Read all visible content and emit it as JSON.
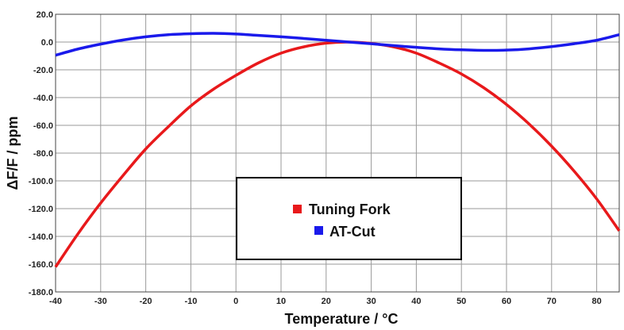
{
  "chart_data": {
    "type": "line",
    "title": "",
    "xlabel": "Temperature / °C",
    "ylabel": "ΔF/F / ppm",
    "xlim": [
      -40,
      85
    ],
    "ylim": [
      -180,
      20
    ],
    "grid": true,
    "legend_position": "center-bottom",
    "x_ticks": [
      {
        "value": -40,
        "label": "-40"
      },
      {
        "value": -30,
        "label": "-30"
      },
      {
        "value": -20,
        "label": "-20"
      },
      {
        "value": -10,
        "label": "-10"
      },
      {
        "value": 0,
        "label": "0"
      },
      {
        "value": 10,
        "label": "10"
      },
      {
        "value": 20,
        "label": "20"
      },
      {
        "value": 30,
        "label": "30"
      },
      {
        "value": 40,
        "label": "40"
      },
      {
        "value": 50,
        "label": "50"
      },
      {
        "value": 60,
        "label": "60"
      },
      {
        "value": 70,
        "label": "70"
      },
      {
        "value": 80,
        "label": "80"
      }
    ],
    "y_ticks": [
      {
        "value": 20,
        "label": "20.0"
      },
      {
        "value": 0,
        "label": "0.0"
      },
      {
        "value": -20,
        "label": "-20.0"
      },
      {
        "value": -40,
        "label": "-40.0"
      },
      {
        "value": -60,
        "label": "-60.0"
      },
      {
        "value": -80,
        "label": "-80.0"
      },
      {
        "value": -100,
        "label": "-100.0"
      },
      {
        "value": -120,
        "label": "-120.0"
      },
      {
        "value": -140,
        "label": "-140.0"
      },
      {
        "value": -160,
        "label": "-160.0"
      },
      {
        "value": -180,
        "label": "-180.0"
      }
    ],
    "series": [
      {
        "name": "Tuning Fork",
        "color": "#e8191b",
        "x": [
          -40,
          -35,
          -30,
          -25,
          -20,
          -15,
          -10,
          -5,
          0,
          5,
          10,
          15,
          20,
          25,
          30,
          35,
          40,
          45,
          50,
          55,
          60,
          65,
          70,
          75,
          80,
          85
        ],
        "y": [
          -162,
          -138,
          -116,
          -96,
          -77,
          -61,
          -46,
          -34,
          -24,
          -15,
          -8,
          -3.5,
          -0.8,
          0,
          -1,
          -3.5,
          -8,
          -15,
          -23,
          -33,
          -45,
          -59,
          -75,
          -93,
          -113,
          -136
        ]
      },
      {
        "name": "AT-Cut",
        "color": "#1a1aeb",
        "x": [
          -40,
          -35,
          -30,
          -25,
          -20,
          -15,
          -10,
          -5,
          0,
          5,
          10,
          15,
          20,
          25,
          30,
          35,
          40,
          45,
          50,
          55,
          60,
          65,
          70,
          75,
          80,
          85
        ],
        "y": [
          -9.5,
          -5,
          -1.5,
          1.5,
          3.8,
          5.3,
          6,
          6.3,
          5.8,
          4.8,
          3.8,
          2.6,
          1.3,
          0,
          -1.2,
          -2.6,
          -3.8,
          -4.9,
          -5.6,
          -6,
          -5.8,
          -4.9,
          -3.3,
          -1.2,
          1.3,
          5.3
        ]
      }
    ]
  }
}
